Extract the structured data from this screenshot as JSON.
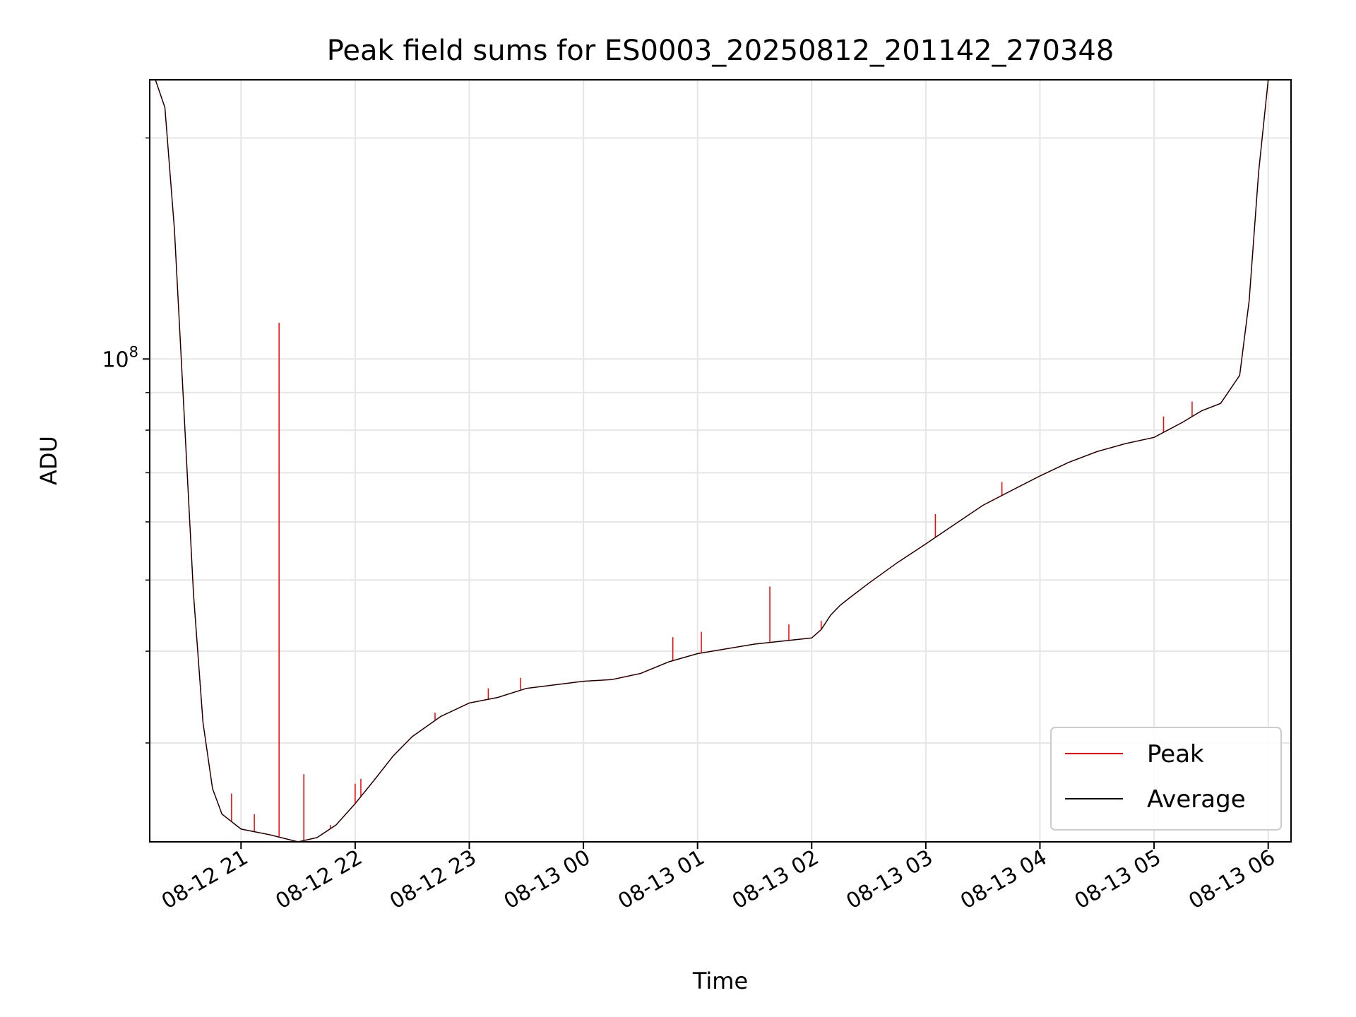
{
  "chart_data": {
    "type": "line",
    "title": "Peak field sums for ES0003_20250812_201142_270348",
    "xlabel": "Time",
    "ylabel": "ADU",
    "yscale": "log",
    "ylim": [
      22000000,
      240000000
    ],
    "xlim": [
      "2025-08-12 20:12",
      "2025-08-13 06:12"
    ],
    "x_ticks": [
      "08-12 21",
      "08-12 22",
      "08-12 23",
      "08-13 00",
      "08-13 01",
      "08-13 02",
      "08-13 03",
      "08-13 04",
      "08-13 05",
      "08-13 06"
    ],
    "x_tick_times": [
      "2025-08-12 21:00",
      "2025-08-12 22:00",
      "2025-08-12 23:00",
      "2025-08-13 00:00",
      "2025-08-13 01:00",
      "2025-08-13 02:00",
      "2025-08-13 03:00",
      "2025-08-13 04:00",
      "2025-08-13 05:00",
      "2025-08-13 06:00"
    ],
    "y_major_tick": {
      "value": 100000000,
      "base": "10",
      "exp": "8"
    },
    "y_minor_ticks": [
      30000000,
      40000000,
      50000000,
      60000000,
      70000000,
      80000000,
      90000000,
      200000000
    ],
    "grid": true,
    "legend": "lower-right",
    "series": [
      {
        "name": "Average",
        "color": "#000000",
        "x": [
          "2025-08-12 20:15",
          "2025-08-12 20:20",
          "2025-08-12 20:25",
          "2025-08-12 20:30",
          "2025-08-12 20:35",
          "2025-08-12 20:40",
          "2025-08-12 20:45",
          "2025-08-12 20:50",
          "2025-08-12 21:00",
          "2025-08-12 21:15",
          "2025-08-12 21:30",
          "2025-08-12 21:40",
          "2025-08-12 21:50",
          "2025-08-12 22:00",
          "2025-08-12 22:10",
          "2025-08-12 22:20",
          "2025-08-12 22:30",
          "2025-08-12 22:45",
          "2025-08-12 23:00",
          "2025-08-12 23:15",
          "2025-08-12 23:30",
          "2025-08-13 00:00",
          "2025-08-13 00:15",
          "2025-08-13 00:30",
          "2025-08-13 00:45",
          "2025-08-13 01:00",
          "2025-08-13 01:15",
          "2025-08-13 01:30",
          "2025-08-13 01:45",
          "2025-08-13 02:00",
          "2025-08-13 02:05",
          "2025-08-13 02:10",
          "2025-08-13 02:15",
          "2025-08-13 02:20",
          "2025-08-13 02:30",
          "2025-08-13 02:45",
          "2025-08-13 03:00",
          "2025-08-13 03:15",
          "2025-08-13 03:30",
          "2025-08-13 03:45",
          "2025-08-13 04:00",
          "2025-08-13 04:15",
          "2025-08-13 04:30",
          "2025-08-13 04:45",
          "2025-08-13 05:00",
          "2025-08-13 05:15",
          "2025-08-13 05:25",
          "2025-08-13 05:35",
          "2025-08-13 05:45",
          "2025-08-13 05:50",
          "2025-08-13 05:55",
          "2025-08-13 06:00"
        ],
        "values": [
          240000000,
          220000000,
          150000000,
          85000000,
          48000000,
          32000000,
          26000000,
          24000000,
          22900000,
          22500000,
          22000000,
          22300000,
          23200000,
          24800000,
          26700000,
          28800000,
          30600000,
          32600000,
          34000000,
          34600000,
          35600000,
          36400000,
          36600000,
          37300000,
          38700000,
          39700000,
          40300000,
          40900000,
          41300000,
          41700000,
          42800000,
          44800000,
          46200000,
          47300000,
          49500000,
          52800000,
          56000000,
          59500000,
          63200000,
          66200000,
          69300000,
          72300000,
          74800000,
          76700000,
          78200000,
          82000000,
          85000000,
          87000000,
          95000000,
          120000000,
          180000000,
          240000000
        ]
      },
      {
        "name": "Peak",
        "color": "#ff0000",
        "spikes": [
          {
            "x": "2025-08-12 20:55",
            "values": [
              25600000
            ]
          },
          {
            "x": "2025-08-12 21:07",
            "values": [
              24000000
            ]
          },
          {
            "x": "2025-08-12 21:20",
            "values": [
              112000000
            ]
          },
          {
            "x": "2025-08-12 21:33",
            "values": [
              27200000
            ]
          },
          {
            "x": "2025-08-12 21:47",
            "values": [
              23200000
            ]
          },
          {
            "x": "2025-08-12 22:00",
            "values": [
              26400000
            ]
          },
          {
            "x": "2025-08-12 22:03",
            "values": [
              26800000
            ]
          },
          {
            "x": "2025-08-12 22:42",
            "values": [
              33000000
            ]
          },
          {
            "x": "2025-08-12 23:10",
            "values": [
              35600000
            ]
          },
          {
            "x": "2025-08-12 23:27",
            "values": [
              36800000
            ]
          },
          {
            "x": "2025-08-13 00:47",
            "values": [
              41800000
            ]
          },
          {
            "x": "2025-08-13 01:02",
            "values": [
              42500000
            ]
          },
          {
            "x": "2025-08-13 01:38",
            "values": [
              49000000
            ]
          },
          {
            "x": "2025-08-13 01:48",
            "values": [
              43500000
            ]
          },
          {
            "x": "2025-08-13 02:05",
            "values": [
              44000000
            ]
          },
          {
            "x": "2025-08-13 03:05",
            "values": [
              61500000
            ]
          },
          {
            "x": "2025-08-13 03:40",
            "values": [
              68000000
            ]
          },
          {
            "x": "2025-08-13 05:05",
            "values": [
              83500000
            ]
          },
          {
            "x": "2025-08-13 05:20",
            "values": [
              87500000
            ]
          }
        ]
      }
    ]
  }
}
